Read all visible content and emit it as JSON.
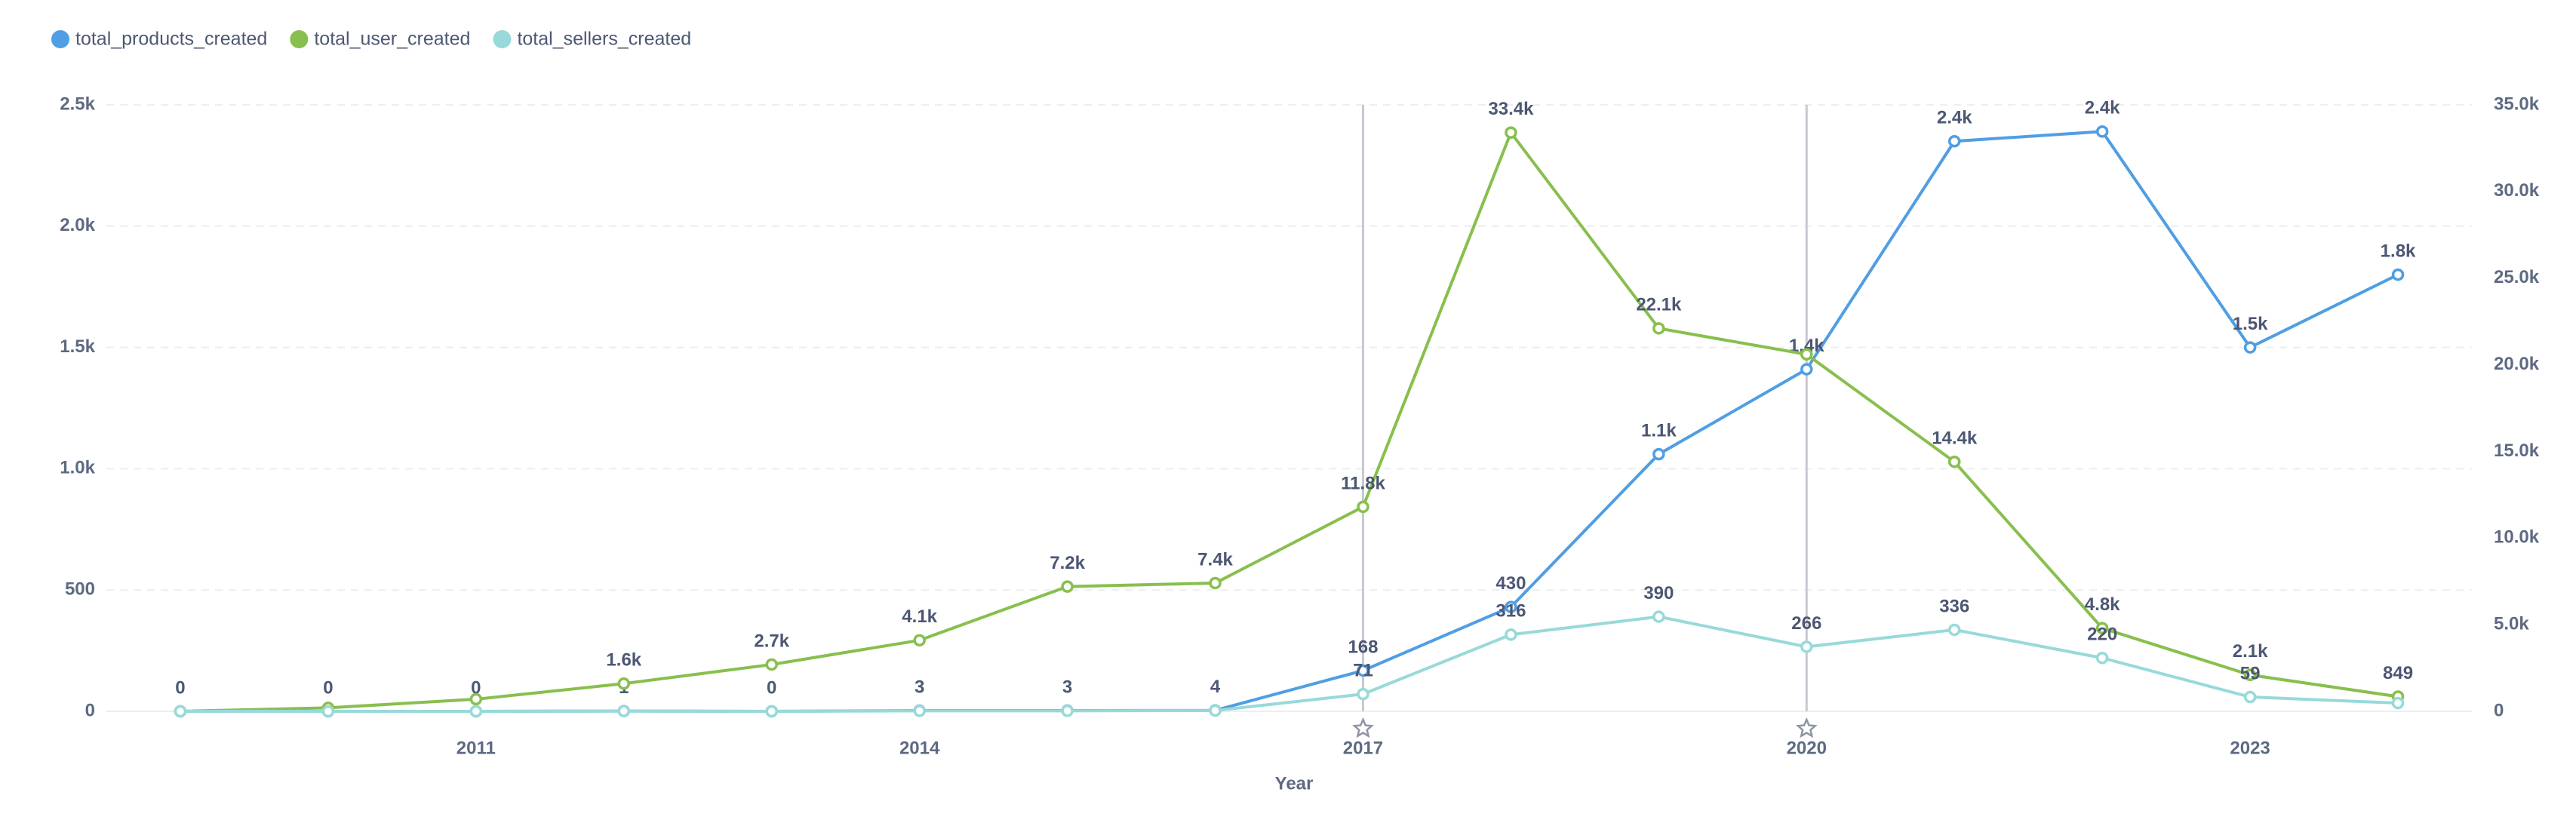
{
  "chart_data": {
    "type": "line",
    "xlabel": "Year",
    "x": [
      2009,
      2010,
      2011,
      2012,
      2013,
      2014,
      2015,
      2016,
      2017,
      2018,
      2019,
      2020,
      2021,
      2022,
      2023,
      2024
    ],
    "xlim": [
      2008.5,
      2024.5
    ],
    "xticks": [
      2011,
      2014,
      2017,
      2020,
      2023
    ],
    "ylim": [
      0,
      2500
    ],
    "yticks": [
      0,
      500,
      {
        "value": 1000,
        "label": "1.0k"
      },
      {
        "value": 1500,
        "label": "1.5k"
      },
      {
        "value": 2000,
        "label": "2.0k"
      },
      {
        "value": 2500,
        "label": "2.5k"
      }
    ],
    "y2lim": [
      0,
      35000
    ],
    "y2ticks": [
      0,
      {
        "value": 5000,
        "label": "5.0k"
      },
      {
        "value": 10000,
        "label": "10.0k"
      },
      {
        "value": 15000,
        "label": "15.0k"
      },
      {
        "value": 20000,
        "label": "20.0k"
      },
      {
        "value": 25000,
        "label": "25.0k"
      },
      {
        "value": 30000,
        "label": "30.0k"
      },
      {
        "value": 35000,
        "label": "35.0k"
      }
    ],
    "grid": true,
    "legend": "top-left",
    "event_markers": [
      2017,
      2020
    ],
    "series": [
      {
        "name": "total_products_created",
        "color": "#509ee3",
        "values": [
          0,
          0,
          0,
          1,
          0,
          3,
          3,
          4,
          168,
          430,
          1060,
          1410,
          2350,
          2390,
          1500,
          1800
        ],
        "value_labels": [
          "0",
          "0",
          "0",
          "1",
          "0",
          "3",
          "3",
          "4",
          "168",
          "430",
          "1.1k",
          "1.4k",
          "2.4k",
          "2.4k",
          "1.5k",
          "1.8k"
        ]
      },
      {
        "name": "total_user_created",
        "color": "#88bf4d",
        "axis": "y2",
        "values": [
          0,
          200,
          700,
          1600,
          2700,
          4100,
          7200,
          7400,
          11800,
          33400,
          22100,
          20600,
          14400,
          4800,
          2100,
          849
        ],
        "value_labels": [
          null,
          null,
          null,
          "1.6k",
          "2.7k",
          "4.1k",
          "7.2k",
          "7.4k",
          "11.8k",
          "33.4k",
          "22.1k",
          null,
          "14.4k",
          "4.8k",
          "2.1k",
          "849"
        ]
      },
      {
        "name": "total_sellers_created",
        "color": "#98d9d9",
        "values": [
          0,
          0,
          0,
          1,
          0,
          2,
          2,
          3,
          71,
          316,
          390,
          266,
          336,
          220,
          59,
          34
        ],
        "value_labels": [
          null,
          null,
          null,
          null,
          null,
          null,
          null,
          null,
          "71",
          "316",
          "390",
          "266",
          "336",
          "220",
          "59",
          null
        ]
      }
    ]
  }
}
